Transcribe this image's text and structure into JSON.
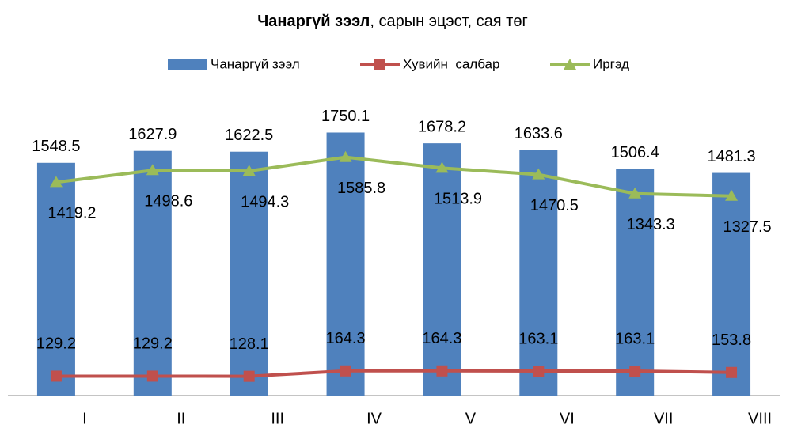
{
  "chart_data": {
    "type": "bar_line",
    "title": [
      "Чанаргүй зээл",
      ", сарын эцэст, сая төг"
    ],
    "categories": [
      "I",
      "II",
      "III",
      "IV",
      "V",
      "VI",
      "VII",
      "VIII"
    ],
    "series": [
      {
        "name": "Чанаргүй зээл",
        "type": "bar",
        "color": "#4f81bd",
        "values": [
          1548.5,
          1627.9,
          1622.5,
          1750.1,
          1678.2,
          1633.6,
          1506.4,
          1481.3
        ]
      },
      {
        "name": "Хувийн  салбар",
        "type": "line",
        "marker": "square",
        "color": "#c0504d",
        "values": [
          129.2,
          129.2,
          128.1,
          164.3,
          164.3,
          163.1,
          163.1,
          153.8
        ]
      },
      {
        "name": "Иргэд",
        "type": "line",
        "marker": "triangle",
        "color": "#9bbb59",
        "values": [
          1419.2,
          1498.6,
          1494.3,
          1585.8,
          1513.9,
          1470.5,
          1343.3,
          1327.5
        ]
      }
    ],
    "ylim": [
      0,
      2000
    ],
    "legend": "top"
  }
}
